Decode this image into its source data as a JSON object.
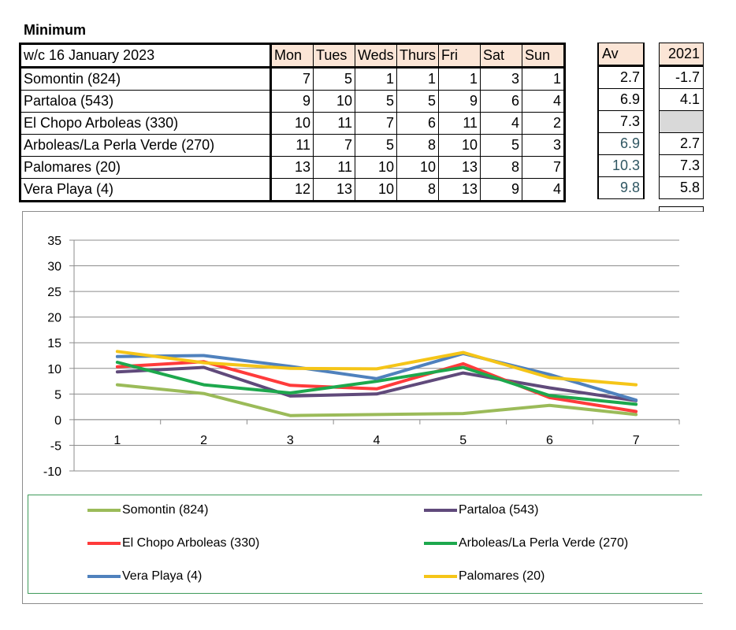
{
  "title": "Minimum",
  "table": {
    "week_label": "w/c  16 January 2023",
    "days": [
      "Mon",
      "Tues",
      "Weds",
      "Thurs",
      "Fri",
      "Sat",
      "Sun"
    ],
    "av_label": "Av",
    "year_label": "2021",
    "rows": [
      {
        "name": "Somontin (824)",
        "values": [
          "7",
          "5",
          "1",
          "1",
          "1",
          "3",
          "1"
        ],
        "av": "2.7",
        "year": "-1.7"
      },
      {
        "name": "Partaloa (543)",
        "values": [
          "9",
          "10",
          "5",
          "5",
          "9",
          "6",
          "4"
        ],
        "av": "6.9",
        "year": "4.1"
      },
      {
        "name": "El Chopo Arboleas (330)",
        "values": [
          "10",
          "11",
          "7",
          "6",
          "11",
          "4",
          "2"
        ],
        "av": "7.3",
        "year": ""
      },
      {
        "name": "Arboleas/La Perla Verde (270)",
        "values": [
          "11",
          "7",
          "5",
          "8",
          "10",
          "5",
          "3"
        ],
        "av": "6.9",
        "year": "2.7"
      },
      {
        "name": "Palomares (20)",
        "values": [
          "13",
          "11",
          "10",
          "10",
          "13",
          "8",
          "7"
        ],
        "av": "10.3",
        "year": "7.3"
      },
      {
        "name": "Vera Playa (4)",
        "values": [
          "12",
          "13",
          "10",
          "8",
          "13",
          "9",
          "4"
        ],
        "av": "9.8",
        "year": "5.8"
      }
    ]
  },
  "chart_data": {
    "type": "line",
    "title": "",
    "xlabel": "",
    "ylabel": "",
    "categories": [
      "1",
      "2",
      "3",
      "4",
      "5",
      "6",
      "7"
    ],
    "ylim": [
      -10,
      35
    ],
    "yticks": [
      "35",
      "30",
      "25",
      "20",
      "15",
      "10",
      "5",
      "0",
      "-5",
      "-10"
    ],
    "grid": true,
    "legend_position": "bottom",
    "series": [
      {
        "name": "Somontin (824)",
        "color": "#9bbb59",
        "values": [
          6.8,
          5.1,
          0.8,
          1.0,
          1.2,
          2.8,
          1.0
        ]
      },
      {
        "name": "Partaloa (543)",
        "color": "#604a7b",
        "values": [
          9.3,
          10.2,
          4.6,
          5.0,
          9.1,
          6.2,
          3.7
        ]
      },
      {
        "name": "El Chopo Arboleas (330)",
        "color": "#ff3b3b",
        "values": [
          10.3,
          11.3,
          6.7,
          6.0,
          10.9,
          4.3,
          1.6
        ]
      },
      {
        "name": "Arboleas/La Perla Verde (270)",
        "color": "#1da84d",
        "values": [
          11.2,
          6.8,
          5.2,
          7.5,
          10.2,
          4.7,
          3.0
        ]
      },
      {
        "name": "Vera Playa (4)",
        "color": "#4f81bd",
        "values": [
          12.3,
          12.5,
          10.4,
          8.0,
          12.9,
          8.8,
          3.8
        ]
      },
      {
        "name": "Palomares (20)",
        "color": "#f5c518",
        "values": [
          13.3,
          11.1,
          10.0,
          9.9,
          13.1,
          8.2,
          6.8
        ]
      }
    ]
  }
}
